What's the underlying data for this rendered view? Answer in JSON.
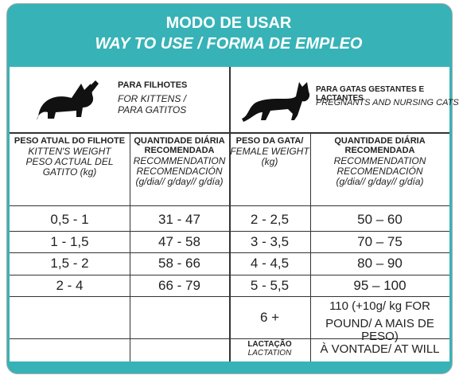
{
  "header": {
    "title": "MODO DE USAR",
    "subtitle": "WAY TO USE / FORMA DE EMPLEO"
  },
  "kittens": {
    "title": "PARA FILHOTES",
    "lines": [
      "FOR KITTENS /",
      "PARA GATITOS"
    ]
  },
  "pregnant": {
    "title": "PARA GATAS GESTANTES E LACTANTES",
    "lines": [
      "PREGNANTS AND NURSING CATS"
    ]
  },
  "table": {
    "columns": [
      {
        "title": "PESO ATUAL DO FILHOTE",
        "lines": [
          "KITTEN'S WEIGHT",
          "PESO ACTUAL DEL",
          "GATITO (kg)"
        ]
      },
      {
        "title": "QUANTIDADE DIÁRIA RECOMENDADA",
        "lines": [
          "RECOMMENDATION",
          "RECOMENDACIÓN",
          "(g/dia// g/day// g/día)"
        ]
      },
      {
        "title": "PESO DA GATA/",
        "lines": [
          "FEMALE WEIGHT",
          "(kg)"
        ]
      },
      {
        "title": "QUANTIDADE DIÁRIA RECOMENDADA",
        "lines": [
          "RECOMMENDATION",
          "RECOMENDACIÓN",
          "(g/dia// g/day// g/día)"
        ]
      }
    ],
    "rows": [
      [
        "0,5 - 1",
        "31 - 47",
        "2 - 2,5",
        "50 – 60"
      ],
      [
        "1 - 1,5",
        "47 - 58",
        "3 - 3,5",
        "70 – 75"
      ],
      [
        "1,5 - 2",
        "58 - 66",
        "4 - 4,5",
        "80 – 90"
      ],
      [
        "2 - 4",
        "66 - 79",
        "5 - 5,5",
        "95 – 100"
      ]
    ],
    "extra": {
      "weight": "6 +",
      "amount": [
        "110 (+10g/ kg FOR",
        "POUND/ A MAIS DE PESO)"
      ]
    },
    "lactation": {
      "label": "LACTAÇÃO",
      "label_en": "LACTATION",
      "amount": "À VONTADE/ AT WILL"
    }
  }
}
